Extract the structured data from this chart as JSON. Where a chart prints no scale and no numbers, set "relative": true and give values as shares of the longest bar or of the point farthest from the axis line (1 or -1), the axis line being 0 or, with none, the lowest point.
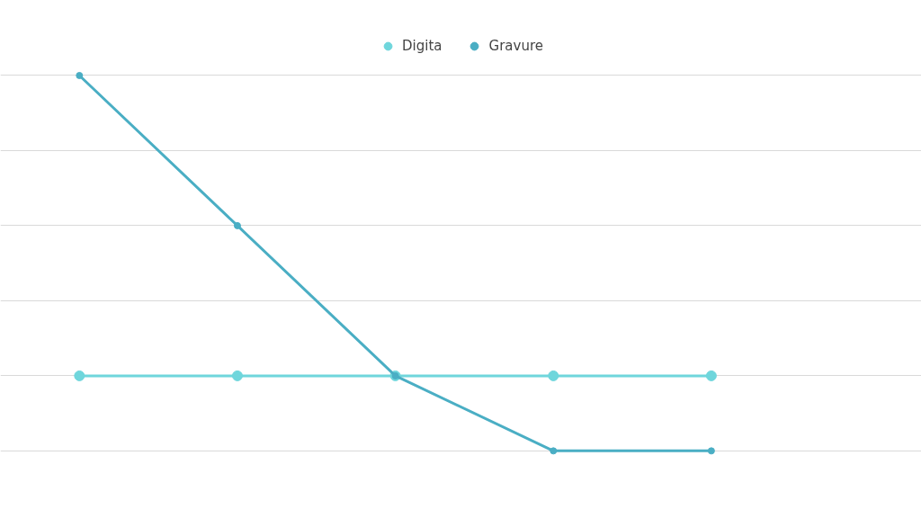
{
  "chart_data": {
    "type": "line",
    "relative": true,
    "categories": [
      null,
      null,
      null,
      null,
      null
    ],
    "series": [
      {
        "name": "Digita",
        "color": "#6fd6dc",
        "values": [
          0.2,
          0.2,
          0.2,
          0.2,
          0.2
        ]
      },
      {
        "name": "Gravure",
        "color": "#4aaec4",
        "values": [
          1,
          0.6,
          0.2,
          0,
          0
        ]
      }
    ],
    "grid": "y",
    "legend": "top",
    "marker": "circle",
    "line_style": "solid",
    "tick_labels": false
  }
}
